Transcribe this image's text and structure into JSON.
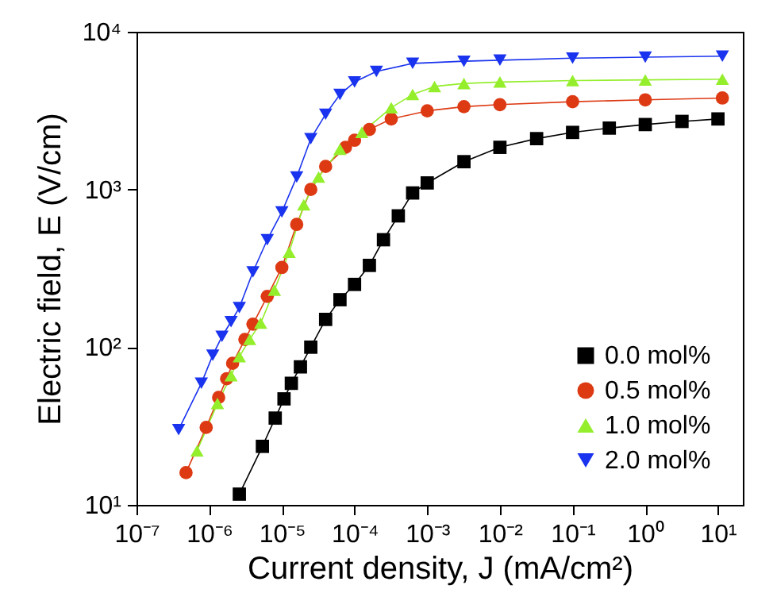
{
  "chart_data": {
    "type": "line",
    "xlabel": "Current density, J (mA/cm²)",
    "ylabel": "Electric field, E (V/cm)",
    "log": "xy",
    "grid": false,
    "legend": "bottom right",
    "line_style": "solid",
    "xlim": [
      1e-07,
      22
    ],
    "ylim": [
      10,
      10000
    ],
    "xticks": [
      {
        "value": 1e-07,
        "label": "10⁻⁷"
      },
      {
        "value": 1e-06,
        "label": "10⁻⁶"
      },
      {
        "value": 1e-05,
        "label": "10⁻⁵"
      },
      {
        "value": 0.0001,
        "label": "10⁻⁴"
      },
      {
        "value": 0.001,
        "label": "10⁻³"
      },
      {
        "value": 0.01,
        "label": "10⁻²"
      },
      {
        "value": 0.1,
        "label": "10⁻¹"
      },
      {
        "value": 1,
        "label": "10⁰"
      },
      {
        "value": 10,
        "label": "10¹"
      }
    ],
    "yticks": [
      {
        "value": 10,
        "label": "10¹"
      },
      {
        "value": 100,
        "label": "10²"
      },
      {
        "value": 1000,
        "label": "10³"
      },
      {
        "value": 10000,
        "label": "10⁴"
      }
    ],
    "series": [
      {
        "name": "0.0 mol%",
        "color": "#000000",
        "marker": "square",
        "x": [
          2.6e-06,
          5.4e-06,
          8.1e-06,
          1.07e-05,
          1.35e-05,
          1.8e-05,
          2.5e-05,
          4e-05,
          6.3e-05,
          0.0001,
          0.00016,
          0.00025,
          0.0004,
          0.00063,
          0.001,
          0.0032,
          0.01,
          0.032,
          0.1,
          0.32,
          1,
          3.2,
          10
        ],
        "values": [
          11.7,
          23.5,
          35.5,
          47,
          59,
          75,
          100,
          150,
          200,
          250,
          330,
          480,
          680,
          950,
          1100,
          1500,
          1850,
          2100,
          2300,
          2450,
          2580,
          2700,
          2800
        ]
      },
      {
        "name": "0.5 mol%",
        "color": "#dd3a14",
        "marker": "circle",
        "x": [
          4.8e-07,
          9.1e-07,
          1.35e-06,
          1.74e-06,
          2.1e-06,
          3.1e-06,
          4e-06,
          6.3e-06,
          1e-05,
          1.6e-05,
          2.5e-05,
          4e-05,
          7.5e-05,
          0.0001,
          0.00016,
          0.00032,
          0.001,
          0.0032,
          0.01,
          0.1,
          1,
          11.5
        ],
        "values": [
          16,
          31,
          48,
          63,
          79,
          112,
          140,
          210,
          320,
          600,
          1000,
          1400,
          1850,
          2050,
          2400,
          2800,
          3150,
          3350,
          3450,
          3600,
          3700,
          3800
        ]
      },
      {
        "name": "1.0 mol%",
        "color": "#94ee2c",
        "marker": "triangle",
        "x": [
          6.8e-07,
          1.3e-06,
          2e-06,
          2.6e-06,
          3.6e-06,
          5.1e-06,
          7.9e-06,
          1.26e-05,
          2e-05,
          3.2e-05,
          6.3e-05,
          0.000126,
          0.00032,
          0.00063,
          0.00126,
          0.0032,
          0.01,
          0.1,
          1,
          11.5
        ],
        "values": [
          22,
          44,
          66,
          87,
          112,
          142,
          230,
          400,
          800,
          1200,
          1800,
          2300,
          3300,
          4000,
          4500,
          4700,
          4800,
          4900,
          4950,
          5000
        ]
      },
      {
        "name": "2.0 mol%",
        "color": "#1a33ee",
        "marker": "triangle-down",
        "x": [
          3.8e-07,
          7.8e-07,
          1.12e-06,
          1.5e-06,
          2e-06,
          2.6e-06,
          4e-06,
          6.3e-06,
          1e-05,
          1.6e-05,
          2.5e-05,
          4e-05,
          6.3e-05,
          0.0001,
          0.0002,
          0.00063,
          0.0032,
          0.01,
          0.1,
          1,
          11.5
        ],
        "values": [
          30,
          59,
          89,
          117,
          145,
          178,
          300,
          480,
          720,
          1200,
          2100,
          3000,
          4000,
          4800,
          5600,
          6300,
          6500,
          6600,
          6800,
          6900,
          7000
        ]
      }
    ]
  }
}
